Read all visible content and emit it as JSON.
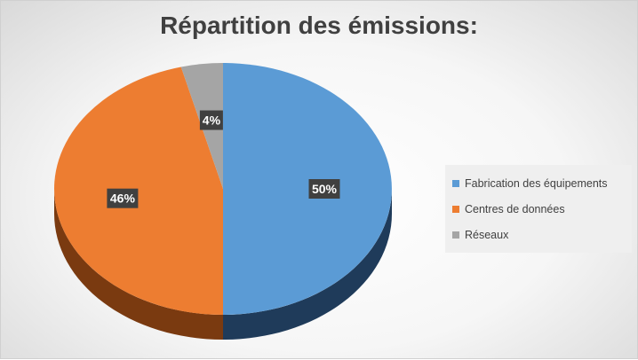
{
  "chart_data": {
    "type": "pie",
    "title": "Répartition des émissions:",
    "categories": [
      "Fabrication des équipements",
      "Centres de données",
      "Réseaux"
    ],
    "values": [
      50,
      46,
      4
    ],
    "data_labels": [
      "50%",
      "46%",
      "4%"
    ],
    "colors": [
      "#5b9bd5",
      "#ed7d31",
      "#a5a5a5"
    ],
    "side_colors": [
      "#1f3b5a",
      "#7a3a10",
      "#555555"
    ],
    "legend_position": "right",
    "style": "3d"
  }
}
